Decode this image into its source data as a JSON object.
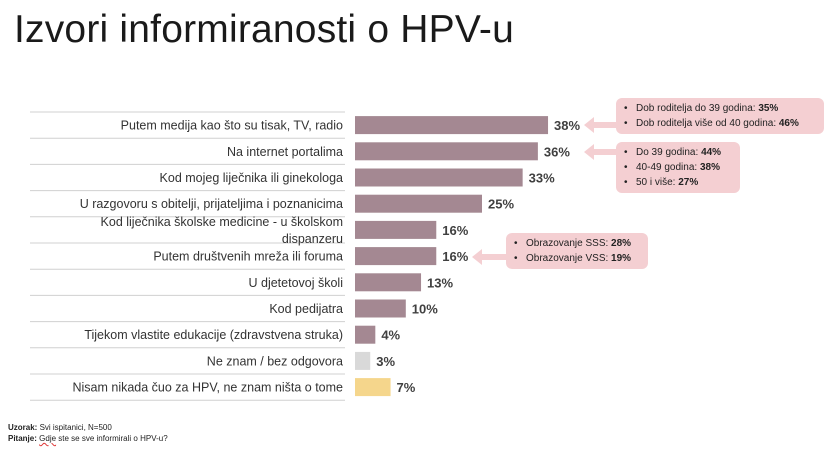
{
  "title": "Izvori informiranosti o HPV-u",
  "chart_data": {
    "type": "bar",
    "orientation": "horizontal",
    "categories": [
      [
        "Putem medija kao što su tisak, TV, radio"
      ],
      [
        "Na internet portalima"
      ],
      [
        "Kod mojeg liječnika ili ginekologa"
      ],
      [
        "U razgovoru s obitelji, prijateljima i poznanicima"
      ],
      [
        "Kod liječnika školske medicine - u školskom",
        "dispanzeru"
      ],
      [
        "Putem društvenih mreža ili foruma"
      ],
      [
        "U djetetovoj školi"
      ],
      [
        "Kod pedijatra"
      ],
      [
        "Tijekom vlastite edukacije (zdravstvena struka)"
      ],
      [
        "Ne znam / bez odgovora"
      ],
      [
        "Nisam nikada čuo za HPV, ne znam ništa o tome"
      ]
    ],
    "values": [
      38,
      36,
      33,
      25,
      16,
      16,
      13,
      10,
      4,
      3,
      7
    ],
    "labels": [
      "38%",
      "36%",
      "33%",
      "25%",
      "16%",
      "16%",
      "13%",
      "10%",
      "4%",
      "3%",
      "7%"
    ],
    "colors": [
      "#a48892",
      "#a48892",
      "#a48892",
      "#a48892",
      "#a48892",
      "#a48892",
      "#a48892",
      "#a48892",
      "#a48892",
      "#d9d9d9",
      "#f5d68c"
    ]
  },
  "callouts": [
    {
      "items": [
        {
          "text": "Dob roditelja do 39 godina: ",
          "value": "35%"
        },
        {
          "text": "Dob roditelja više od 40 godina: ",
          "value": "46%"
        }
      ]
    },
    {
      "items": [
        {
          "text": "Do 39 godina: ",
          "value": "44%"
        },
        {
          "text": "40-49 godina: ",
          "value": "38%"
        },
        {
          "text": "50 i više: ",
          "value": "27%"
        }
      ]
    },
    {
      "items": [
        {
          "text": "Obrazovanje SSS: ",
          "value": "28%"
        },
        {
          "text": "Obrazovanje VSS: ",
          "value": "19%"
        }
      ]
    }
  ],
  "footer": {
    "sample_label": "Uzorak:",
    "sample_text": " Svi ispitanici, N=500",
    "question_label": "Pitanje:",
    "question_word": "Gdje",
    "question_text": " ste se sve informirali o HPV-u?"
  }
}
